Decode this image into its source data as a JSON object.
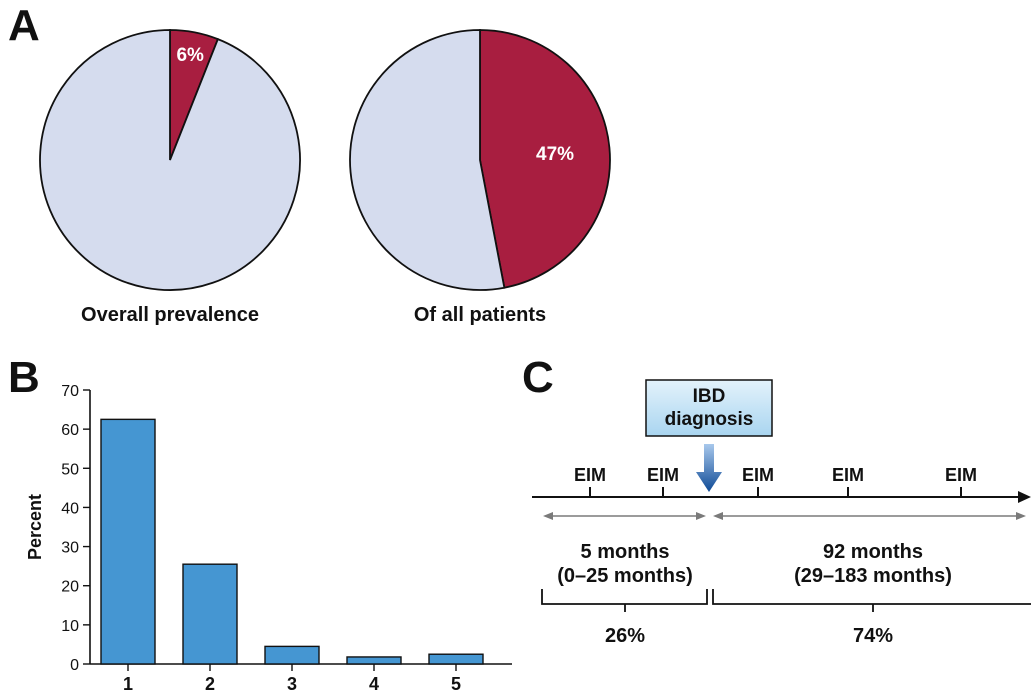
{
  "panels": {
    "a": "A",
    "b": "B",
    "c": "C"
  },
  "colors": {
    "highlight": "#a81e40",
    "rest": "#d5dcee",
    "bar": "#4596d2",
    "arrow": "#0e4a96",
    "box": "#c8e4f4"
  },
  "chart_data": [
    {
      "type": "pie",
      "title": "Overall prevalence",
      "slices": [
        {
          "value": 6,
          "label": "6%",
          "highlight": true
        },
        {
          "value": 94,
          "label": "",
          "highlight": false
        }
      ]
    },
    {
      "type": "pie",
      "title": "Of all patients",
      "slices": [
        {
          "value": 47,
          "label": "47%",
          "highlight": true
        },
        {
          "value": 53,
          "label": "",
          "highlight": false
        }
      ]
    },
    {
      "type": "bar",
      "categories": [
        "1",
        "2",
        "3",
        "4",
        "5"
      ],
      "values": [
        62.5,
        25.5,
        4.5,
        1.8,
        2.5
      ],
      "ylabel": "Percent",
      "ylim": [
        0,
        70
      ],
      "yticks": [
        0,
        10,
        20,
        30,
        40,
        50,
        60,
        70
      ],
      "grid": false
    }
  ],
  "timeline": {
    "box_lines": [
      "IBD",
      "diagnosis"
    ],
    "eim_label": "EIM",
    "before": {
      "duration": "5 months",
      "range": "(0–25 months)",
      "percent": "26%"
    },
    "after": {
      "duration": "92 months",
      "range": "(29–183 months)",
      "percent": "74%"
    }
  }
}
